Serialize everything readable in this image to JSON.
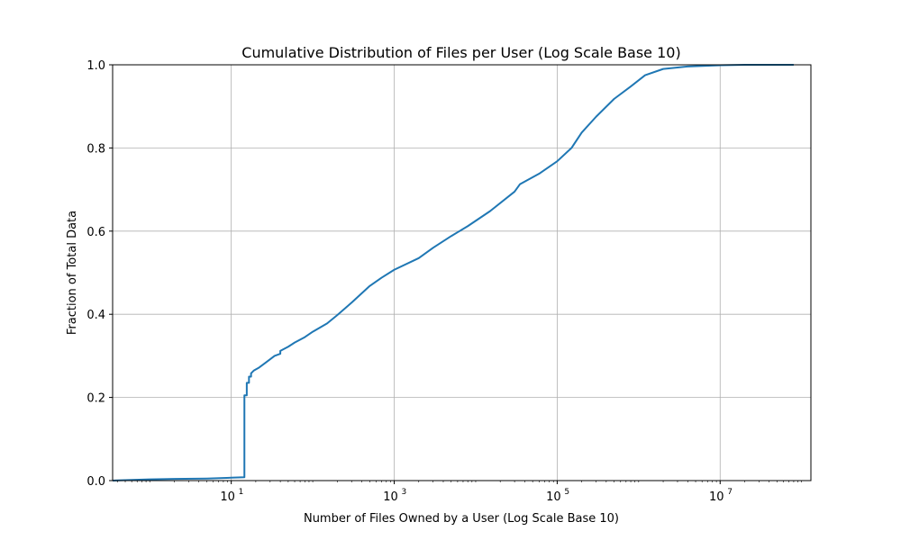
{
  "chart_data": {
    "type": "line",
    "title": "Cumulative Distribution of Files per User (Log Scale Base 10)",
    "xlabel": "Number of Files Owned by a User (Log Scale Base 10)",
    "ylabel": "Fraction of Total Data",
    "xscale": "log",
    "xlim": [
      0.35,
      130000000
    ],
    "ylim": [
      0,
      1
    ],
    "xticks": [
      {
        "value": 10,
        "base": "10",
        "exp": "1"
      },
      {
        "value": 1000,
        "base": "10",
        "exp": "3"
      },
      {
        "value": 100000,
        "base": "10",
        "exp": "5"
      },
      {
        "value": 10000000,
        "base": "10",
        "exp": "7"
      }
    ],
    "yticks": [
      "0.0",
      "0.2",
      "0.4",
      "0.6",
      "0.8",
      "1.0"
    ],
    "grid": true,
    "line_color": "#1f77b4",
    "series": [
      {
        "x": [
          0.35,
          1,
          2,
          5,
          10,
          14.5,
          14.5,
          15.5,
          15.5,
          16.5,
          16.5,
          17.5,
          17.5,
          19,
          22,
          27,
          34,
          40,
          40,
          50,
          60,
          80,
          100,
          150,
          200,
          300,
          500,
          700,
          1000,
          2000,
          3000,
          5000,
          8000,
          15000,
          30000,
          35000,
          60000,
          100000,
          150000,
          200000,
          300000,
          500000,
          800000,
          1200000,
          2000000,
          4000000,
          10000000,
          20000000,
          80000000
        ],
        "y": [
          0.0,
          0.003,
          0.004,
          0.005,
          0.007,
          0.008,
          0.205,
          0.205,
          0.235,
          0.235,
          0.25,
          0.25,
          0.258,
          0.265,
          0.272,
          0.285,
          0.3,
          0.305,
          0.312,
          0.322,
          0.332,
          0.345,
          0.358,
          0.378,
          0.398,
          0.428,
          0.468,
          0.488,
          0.507,
          0.535,
          0.56,
          0.588,
          0.612,
          0.648,
          0.695,
          0.713,
          0.738,
          0.768,
          0.8,
          0.837,
          0.875,
          0.918,
          0.948,
          0.975,
          0.99,
          0.996,
          0.999,
          1.0,
          1.0
        ]
      }
    ]
  }
}
